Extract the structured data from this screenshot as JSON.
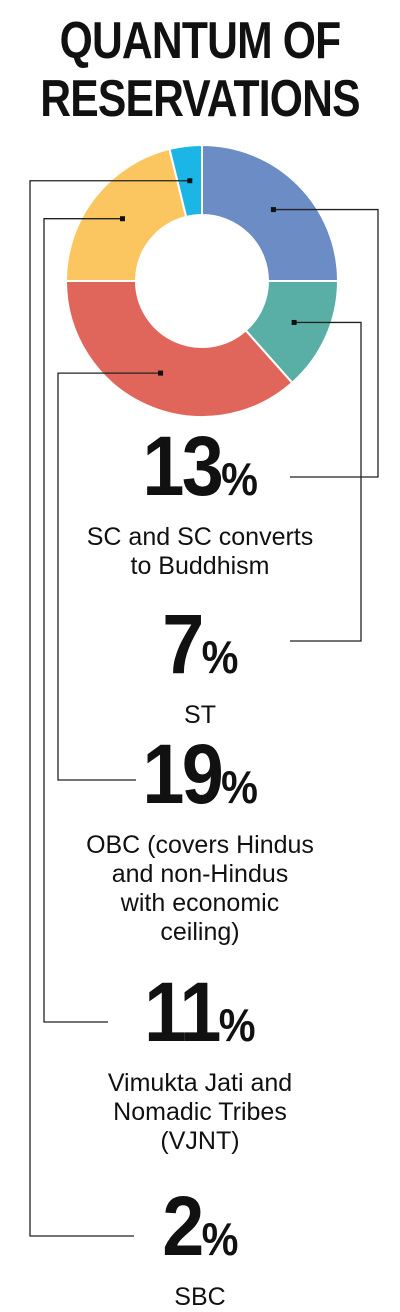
{
  "title_line1": "QUANTUM OF",
  "title_line2": "RESERVATIONS",
  "percent_symbol": "%",
  "chart_data": {
    "type": "pie",
    "donut": true,
    "title": "QUANTUM OF RESERVATIONS",
    "categories": [
      "SC and SC converts to Buddhism",
      "ST",
      "OBC (covers Hindus and non-Hindus with economic ceiling)",
      "Vimukta Jati and Nomadic Tribes (VJNT)",
      "SBC"
    ],
    "values": [
      13,
      7,
      19,
      11,
      2
    ],
    "colors": [
      "#6C8CC6",
      "#59AFA6",
      "#E0665B",
      "#FBC660",
      "#1BB6E6"
    ],
    "unit": "%"
  },
  "entries": [
    {
      "value": "13",
      "desc_lines": [
        "SC and SC converts",
        "to Buddhism"
      ]
    },
    {
      "value": "7",
      "desc_lines": [
        "ST"
      ]
    },
    {
      "value": "19",
      "desc_lines": [
        "OBC (covers Hindus",
        "and non-Hindus",
        "with economic",
        "ceiling)"
      ]
    },
    {
      "value": "11",
      "desc_lines": [
        "Vimukta Jati and",
        "Nomadic Tribes",
        "(VJNT)"
      ]
    },
    {
      "value": "2",
      "desc_lines": [
        "SBC"
      ]
    }
  ]
}
